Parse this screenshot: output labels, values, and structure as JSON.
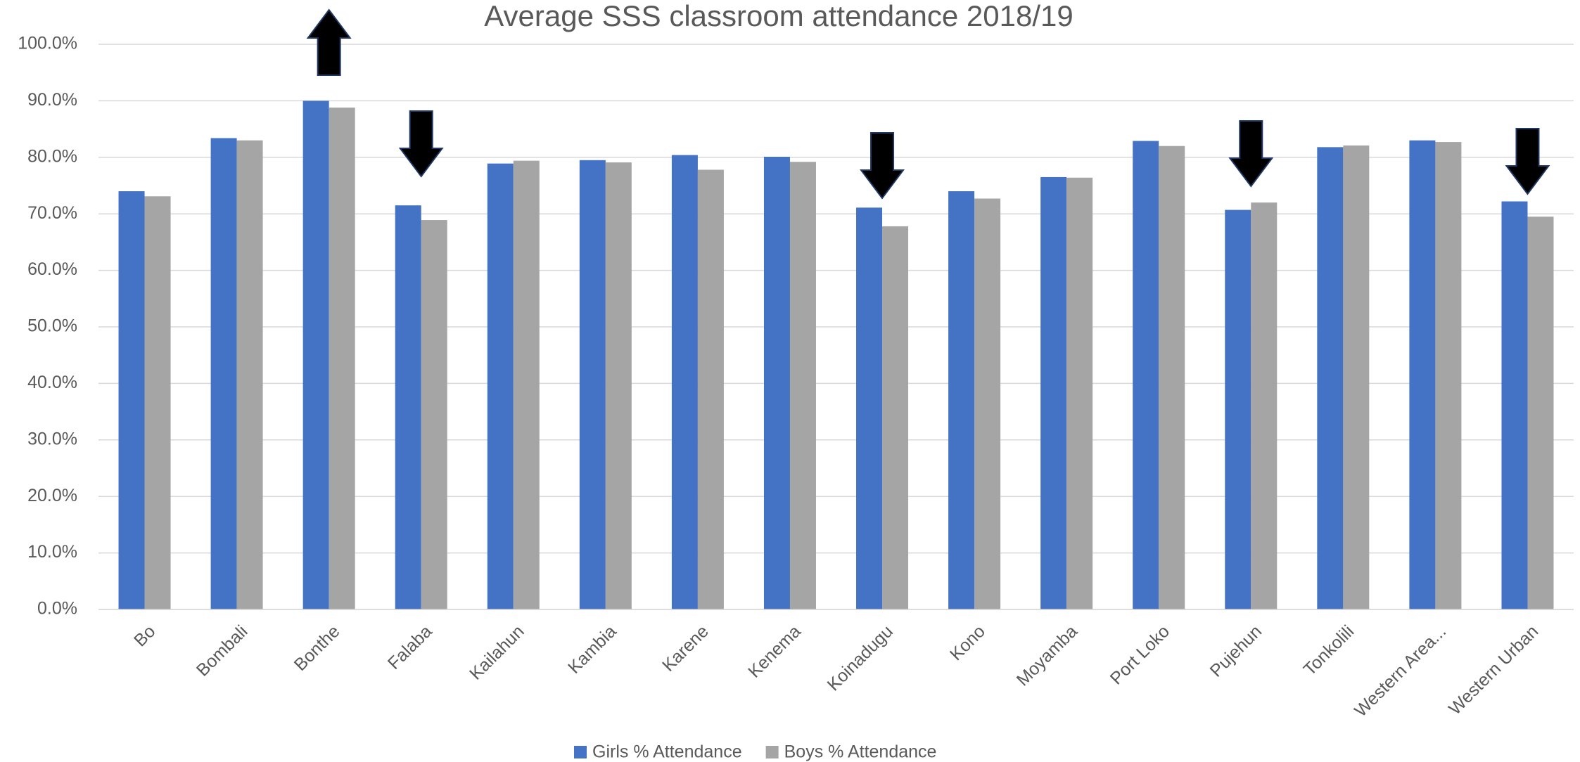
{
  "chart_data": {
    "type": "bar",
    "title": "Average SSS classroom attendance 2018/19",
    "categories": [
      "Bo",
      "Bombali",
      "Bonthe",
      "Falaba",
      "Kailahun",
      "Kambia",
      "Karene",
      "Kenema",
      "Koinadugu",
      "Kono",
      "Moyamba",
      "Port Loko",
      "Pujehun",
      "Tonkolili",
      "Western Area...",
      "Western Urban"
    ],
    "series": [
      {
        "name": "Girls % Attendance",
        "color": "#4472c4",
        "values": [
          74.0,
          83.4,
          90.0,
          71.5,
          78.9,
          79.5,
          80.4,
          80.1,
          71.1,
          74.0,
          76.5,
          82.9,
          70.7,
          81.8,
          83.0,
          72.2
        ]
      },
      {
        "name": "Boys % Attendance",
        "color": "#a5a5a5",
        "values": [
          73.1,
          83.0,
          88.8,
          68.9,
          79.4,
          79.1,
          77.8,
          79.2,
          67.8,
          72.7,
          76.4,
          82.0,
          72.0,
          82.1,
          82.7,
          69.5
        ]
      }
    ],
    "ylim": [
      0,
      100
    ],
    "yticks": [
      {
        "value": 0,
        "label": "0.0%"
      },
      {
        "value": 10,
        "label": "10.0%"
      },
      {
        "value": 20,
        "label": "20.0%"
      },
      {
        "value": 30,
        "label": "30.0%"
      },
      {
        "value": 40,
        "label": "40.0%"
      },
      {
        "value": 50,
        "label": "50.0%"
      },
      {
        "value": 60,
        "label": "60.0%"
      },
      {
        "value": 70,
        "label": "70.0%"
      },
      {
        "value": 80,
        "label": "80.0%"
      },
      {
        "value": 90,
        "label": "90.0%"
      },
      {
        "value": 100,
        "label": "100.0%"
      }
    ],
    "grid": true,
    "legend": "bottom"
  }
}
